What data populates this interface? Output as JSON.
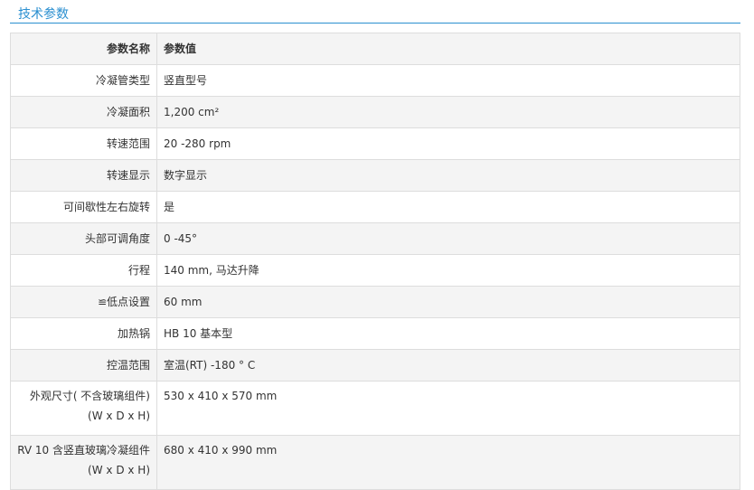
{
  "title": "技术参数",
  "headers": {
    "name": "参数名称",
    "value": "参数值"
  },
  "rows": [
    {
      "name": "冷凝管类型",
      "value": "竖直型号"
    },
    {
      "name": "冷凝面积",
      "value": "1,200 cm²"
    },
    {
      "name": "转速范围",
      "value": "20 -280 rpm"
    },
    {
      "name": "转速显示",
      "value": "数字显示"
    },
    {
      "name": "可间歇性左右旋转",
      "value": "是"
    },
    {
      "name": "头部可调角度",
      "value": "0 -45°"
    },
    {
      "name": "行程",
      "value": "140 mm, 马达升降"
    },
    {
      "name": "≌低点设置",
      "value": "60 mm"
    },
    {
      "name": "加热锅",
      "value": "HB 10 基本型"
    },
    {
      "name": "控温范围",
      "value": "室温(RT) -180 ° C"
    },
    {
      "name": "外观尺寸( 不含玻璃组件)(W x D x H)",
      "value": "530 x 410 x 570 mm"
    },
    {
      "name": "RV 10 含竖直玻璃冷凝组件(W x D x H)",
      "value": "680 x 410 x 990 mm"
    }
  ]
}
